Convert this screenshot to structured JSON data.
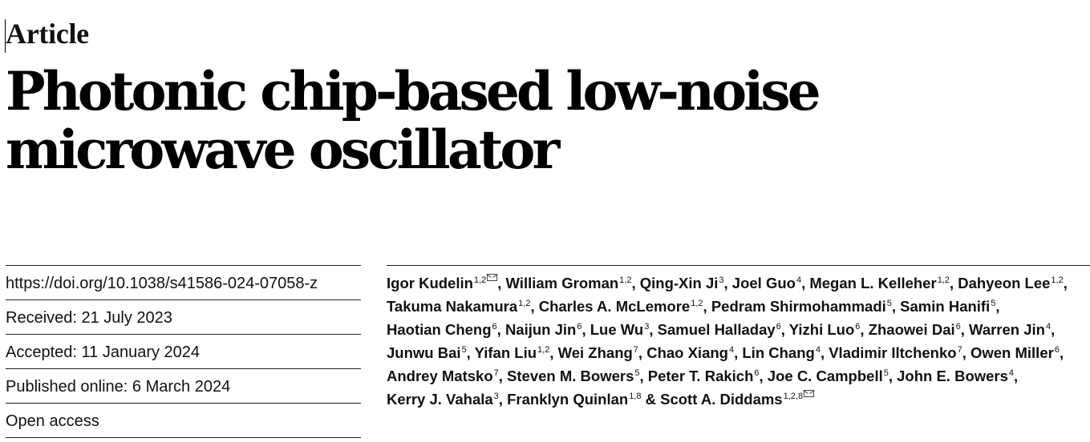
{
  "article_label": "Article",
  "title": "Photonic chip-based low-noise microwave oscillator",
  "meta": [
    "https://doi.org/10.1038/s41586-024-07058-z",
    "Received: 21 July 2023",
    "Accepted: 11 January 2024",
    "Published online: 6 March 2024",
    "Open access"
  ],
  "authors": [
    {
      "name": "Igor Kudelin",
      "aff": "1,2",
      "corresponding": true
    },
    {
      "name": "William Groman",
      "aff": "1,2"
    },
    {
      "name": "Qing-Xin Ji",
      "aff": "3"
    },
    {
      "name": "Joel Guo",
      "aff": "4"
    },
    {
      "name": "Megan L. Kelleher",
      "aff": "1,2"
    },
    {
      "name": "Dahyeon Lee",
      "aff": "1,2"
    },
    {
      "name": "Takuma Nakamura",
      "aff": "1,2"
    },
    {
      "name": "Charles A. McLemore",
      "aff": "1,2"
    },
    {
      "name": "Pedram Shirmohammadi",
      "aff": "5"
    },
    {
      "name": "Samin Hanifi",
      "aff": "5"
    },
    {
      "name": "Haotian Cheng",
      "aff": "6"
    },
    {
      "name": "Naijun Jin",
      "aff": "6"
    },
    {
      "name": "Lue Wu",
      "aff": "3"
    },
    {
      "name": "Samuel Halladay",
      "aff": "6"
    },
    {
      "name": "Yizhi Luo",
      "aff": "6"
    },
    {
      "name": "Zhaowei Dai",
      "aff": "6"
    },
    {
      "name": "Warren Jin",
      "aff": "4"
    },
    {
      "name": "Junwu Bai",
      "aff": "5"
    },
    {
      "name": "Yifan Liu",
      "aff": "1,2"
    },
    {
      "name": "Wei Zhang",
      "aff": "7"
    },
    {
      "name": "Chao Xiang",
      "aff": "4"
    },
    {
      "name": "Lin Chang",
      "aff": "4"
    },
    {
      "name": "Vladimir Iltchenko",
      "aff": "7"
    },
    {
      "name": "Owen Miller",
      "aff": "6"
    },
    {
      "name": "Andrey Matsko",
      "aff": "7"
    },
    {
      "name": "Steven M. Bowers",
      "aff": "5"
    },
    {
      "name": "Peter T. Rakich",
      "aff": "6"
    },
    {
      "name": "Joe C. Campbell",
      "aff": "5"
    },
    {
      "name": "John E. Bowers",
      "aff": "4"
    },
    {
      "name": "Kerry J. Vahala",
      "aff": "3"
    },
    {
      "name": "Franklyn Quinlan",
      "aff": "1,8"
    },
    {
      "name": "Scott A. Diddams",
      "aff": "1,2,8",
      "corresponding": true
    }
  ],
  "author_separator": ", ",
  "last_author_separator": " & ",
  "icons": {
    "corresponding": "envelope-icon"
  }
}
